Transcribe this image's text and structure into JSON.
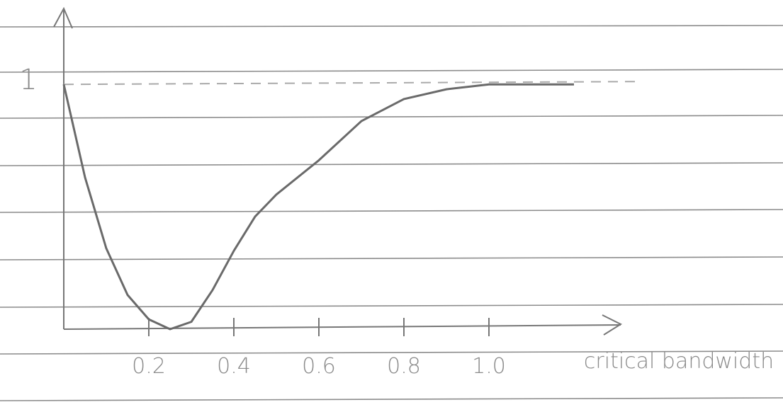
{
  "chart_data": {
    "type": "line",
    "x_label": "critical bandwidth",
    "x": [
      0,
      0.05,
      0.1,
      0.15,
      0.2,
      0.25,
      0.3,
      0.35,
      0.4,
      0.45,
      0.5,
      0.6,
      0.7,
      0.8,
      0.9,
      1.0,
      1.2
    ],
    "series": [
      {
        "color": "#6a6a6a",
        "values": [
          1.0,
          0.62,
          0.33,
          0.14,
          0.04,
          0,
          0.03,
          0.16,
          0.32,
          0.46,
          0.55,
          0.69,
          0.85,
          0.94,
          0.98,
          1.0,
          1.0
        ]
      }
    ],
    "xlim": [
      0,
      1.31
    ],
    "ylim": [
      0,
      1.31
    ],
    "xticks": [
      0.2,
      0.4,
      0.6,
      0.8,
      {
        "value": 1,
        "label": "1.0"
      }
    ],
    "yticks": [
      1
    ],
    "grid": "dashed"
  }
}
